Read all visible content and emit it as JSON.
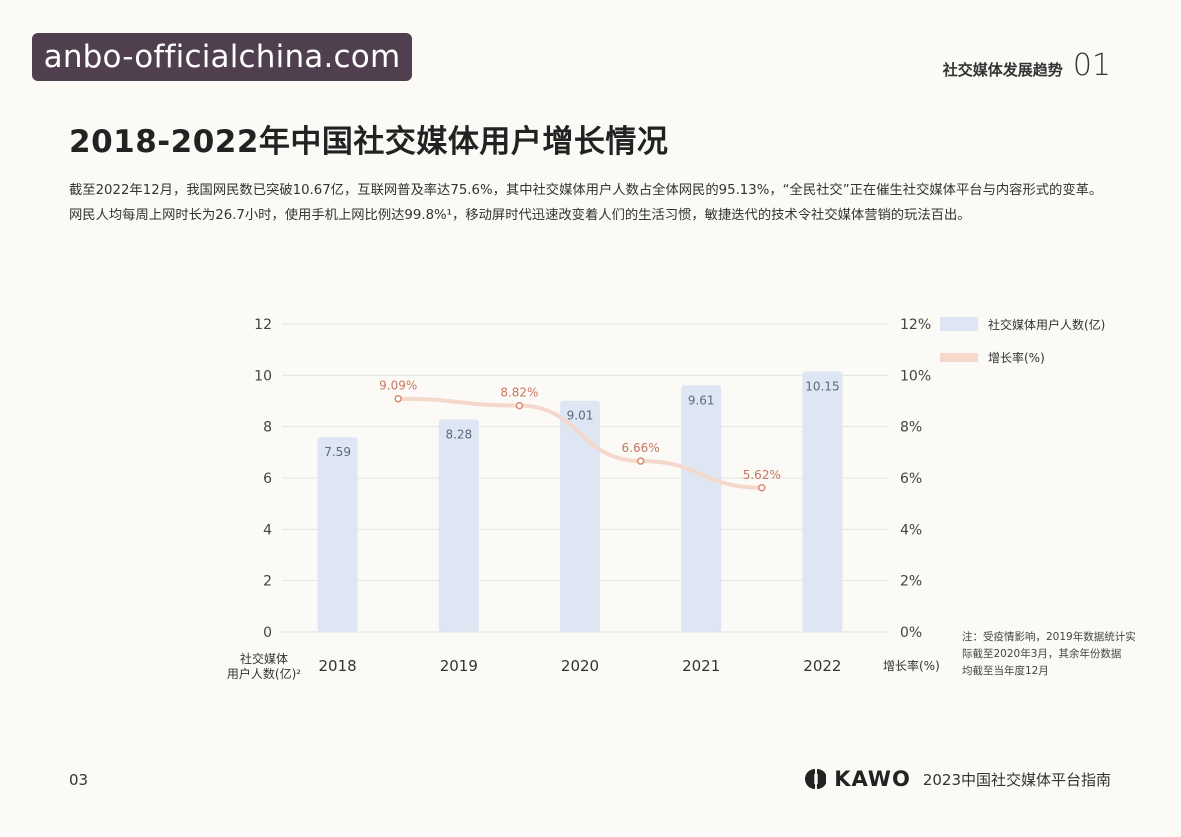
{
  "watermark": "anbo-officialchina.com",
  "header": {
    "section_title": "社交媒体发展趋势",
    "section_number": "01"
  },
  "title": "2018-2022年中国社交媒体用户增长情况",
  "intro": "截至2022年12月，我国网民数已突破10.67亿，互联网普及率达75.6%，其中社交媒体用户人数占全体网民的95.13%，“全民社交”正在催生社交媒体平台与内容形式的变革。网民人均每周上网时长为26.7小时，使用手机上网比例达99.8%¹，移动屏时代迅速改变着人们的生活习惯，敏捷迭代的技术令社交媒体营销的玩法百出。",
  "chart_data": {
    "type": "bar",
    "categories": [
      "2018",
      "2019",
      "2020",
      "2021",
      "2022"
    ],
    "series": [
      {
        "name": "社交媒体用户人数(亿)",
        "type": "bar",
        "axis": "left",
        "values": [
          7.59,
          8.28,
          9.01,
          9.61,
          10.15
        ],
        "labels": [
          "7.59",
          "8.28",
          "9.01",
          "9.61",
          "10.15"
        ],
        "color": "#dde6f2"
      },
      {
        "name": "增长率(%)",
        "type": "line",
        "axis": "right",
        "x": [
          "2018.5",
          "2019.5",
          "2020.5",
          "2021.5"
        ],
        "values": [
          9.09,
          8.82,
          6.66,
          5.62
        ],
        "labels": [
          "9.09%",
          "8.82%",
          "6.66%",
          "5.62%"
        ],
        "color": "#e8a58c"
      }
    ],
    "y_left": {
      "ticks": [
        "0",
        "2",
        "4",
        "6",
        "8",
        "10",
        "12"
      ],
      "ylim": [
        0,
        12
      ],
      "label": "社交媒体用户人数(亿)²"
    },
    "y_right": {
      "ticks": [
        "0%",
        "2%",
        "4%",
        "6%",
        "8%",
        "10%",
        "12%"
      ],
      "ylim": [
        0,
        12
      ],
      "label": "增长率(%)"
    },
    "grid": true,
    "legend_position": "top-right",
    "note": "注：受疫情影响，2019年数据统计实际截至2020年3月，其余年份数据均截至当年度12月"
  },
  "footer": {
    "page_number": "03",
    "brand": "KAWO",
    "report_title": "2023中国社交媒体平台指南"
  }
}
